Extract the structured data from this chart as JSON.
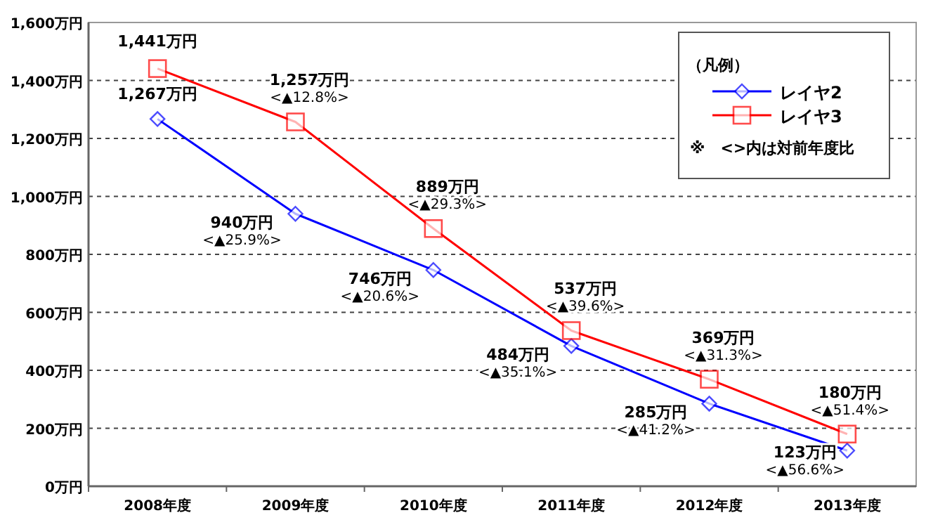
{
  "chart_data": {
    "type": "line",
    "categories": [
      "2008年度",
      "2009年度",
      "2010年度",
      "2011年度",
      "2012年度",
      "2013年度"
    ],
    "series": [
      {
        "name": "レイヤ2",
        "color": "#0000ff",
        "marker": "diamond",
        "values": [
          1267,
          940,
          746,
          484,
          285,
          123
        ],
        "value_labels": [
          "1,267万円",
          "940万円\n<▲25.9%>",
          "746万円\n<▲20.6%>",
          "484万円\n<▲35.1%>",
          "285万円\n<▲41.2%>",
          "123万円\n<▲56.6%>"
        ]
      },
      {
        "name": "レイヤ3",
        "color": "#ff0000",
        "marker": "square",
        "values": [
          1441,
          1257,
          889,
          537,
          369,
          180
        ],
        "value_labels": [
          "1,441万円",
          "1,257万円\n<▲12.8%>",
          "889万円\n<▲29.3%>",
          "537万円\n<▲39.6%>",
          "369万円\n<▲31.3%>",
          "180万円\n<▲51.4%>"
        ]
      }
    ],
    "ylim": [
      0,
      1600
    ],
    "yticks": [
      {
        "value": 0,
        "label": "0万円"
      },
      {
        "value": 200,
        "label": "200万円"
      },
      {
        "value": 400,
        "label": "400万円"
      },
      {
        "value": 600,
        "label": "600万円"
      },
      {
        "value": 800,
        "label": "800万円"
      },
      {
        "value": 1000,
        "label": "1,000万円"
      },
      {
        "value": 1200,
        "label": "1,200万円"
      },
      {
        "value": 1400,
        "label": "1,400万円"
      },
      {
        "value": 1600,
        "label": "1,600万円"
      }
    ],
    "grid": "y",
    "legend": "top right",
    "legend_title": "（凡例）",
    "line_style": "solid",
    "annotations": [
      "※　<>内は対前年度比"
    ]
  }
}
